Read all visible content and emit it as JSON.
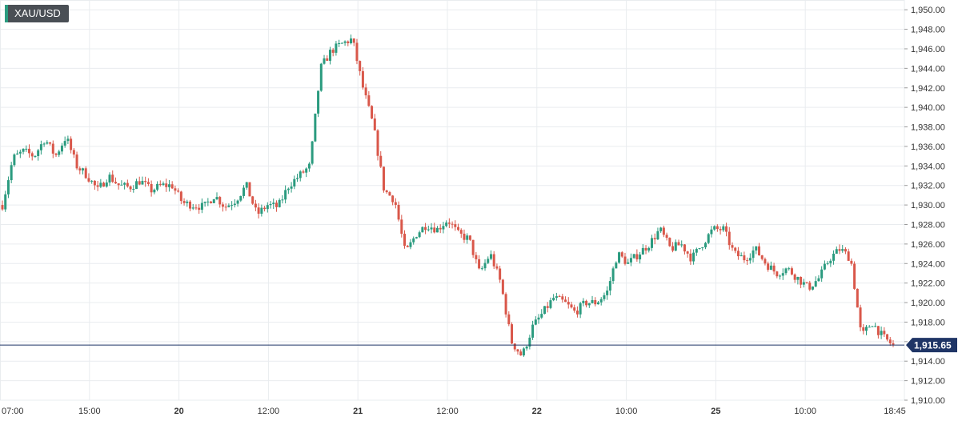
{
  "symbol": "XAU/USD",
  "colors": {
    "background": "#ffffff",
    "grid": "#e9ecef",
    "up": "#2b9b7f",
    "down": "#d9574a",
    "price_line": "#1f3566",
    "axis_text": "#333333",
    "badge_bg": "#1f3566"
  },
  "chart_data": {
    "type": "candlestick",
    "title": "",
    "xlabel": "",
    "ylabel": "",
    "ylim": [
      1910,
      1951
    ],
    "y_ticks": [
      "1,950.00",
      "1,948.00",
      "1,946.00",
      "1,944.00",
      "1,942.00",
      "1,940.00",
      "1,938.00",
      "1,936.00",
      "1,934.00",
      "1,932.00",
      "1,930.00",
      "1,928.00",
      "1,926.00",
      "1,924.00",
      "1,922.00",
      "1,920.00",
      "1,918.00",
      "1,916.00",
      "1,914.00",
      "1,912.00",
      "1,910.00"
    ],
    "x_ticks": [
      "07:00",
      "15:00",
      "20",
      "12:00",
      "21",
      "12:00",
      "22",
      "10:00",
      "25",
      "10:00",
      "18:45"
    ],
    "x_ticks_bold": [
      false,
      false,
      true,
      false,
      true,
      false,
      true,
      false,
      true,
      false,
      false
    ],
    "last_price": 1915.65,
    "last_price_label": "1,915.65",
    "grid": true,
    "series": [
      {
        "values": [
          1930.0,
          1934.8,
          1935.5,
          1935.0,
          1936.8,
          1935.0,
          1937.0,
          1934.0,
          1933.0,
          1931.5,
          1933.0,
          1932.0,
          1931.8,
          1932.5,
          1931.5,
          1932.0,
          1932.0,
          1930.2,
          1930.0,
          1929.8,
          1931.0,
          1929.8,
          1930.5,
          1932.0,
          1929.0,
          1930.0,
          1929.8,
          1932.0,
          1933.0,
          1934.0,
          1944.0,
          1945.8,
          1946.5,
          1947.0,
          1942.0,
          1938.0,
          1931.5,
          1930.5,
          1925.0,
          1927.0,
          1928.0,
          1927.5,
          1928.5,
          1927.0,
          1926.5,
          1923.0,
          1925.0,
          1922.0,
          1916.0,
          1914.5,
          1917.5,
          1919.0,
          1920.5,
          1920.0,
          1919.0,
          1920.0,
          1920.0,
          1921.0,
          1925.0,
          1924.0,
          1925.0,
          1926.0,
          1927.5,
          1925.5,
          1926.0,
          1924.5,
          1926.0,
          1927.5,
          1927.5,
          1925.0,
          1924.5,
          1925.5,
          1924.0,
          1923.0,
          1923.5,
          1922.5,
          1921.5,
          1922.5,
          1924.5,
          1925.5,
          1924.5,
          1916.5,
          1918.0,
          1916.5,
          1915.6
        ]
      }
    ]
  }
}
